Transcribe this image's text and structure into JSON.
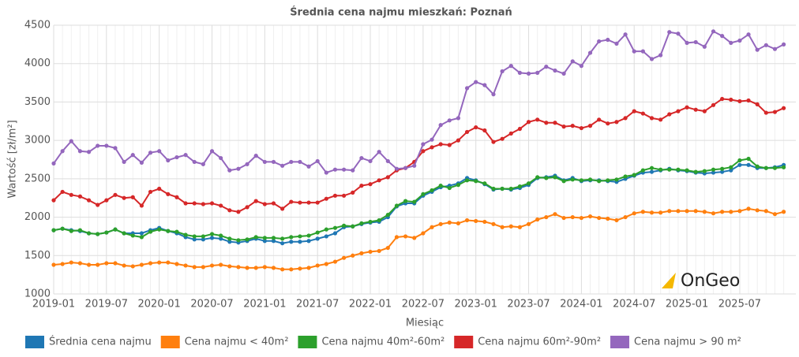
{
  "chart_data": {
    "type": "line",
    "title": "Średnia cena najmu mieszkań: Poznań",
    "x_label": "Miesiąc",
    "y_label": "Wartość [zł/m²]",
    "watermark": "OnGeo",
    "x": [
      "2019-01",
      "2019-02",
      "2019-03",
      "2019-04",
      "2019-05",
      "2019-06",
      "2019-07",
      "2019-08",
      "2019-09",
      "2019-10",
      "2019-11",
      "2019-12",
      "2020-01",
      "2020-02",
      "2020-03",
      "2020-04",
      "2020-05",
      "2020-06",
      "2020-07",
      "2020-08",
      "2020-09",
      "2020-10",
      "2020-11",
      "2020-12",
      "2021-01",
      "2021-02",
      "2021-03",
      "2021-04",
      "2021-05",
      "2021-06",
      "2021-07",
      "2021-08",
      "2021-09",
      "2021-10",
      "2021-11",
      "2021-12",
      "2022-01",
      "2022-02",
      "2022-03",
      "2022-04",
      "2022-05",
      "2022-06",
      "2022-07",
      "2022-08",
      "2022-09",
      "2022-10",
      "2022-11",
      "2022-12",
      "2023-01",
      "2023-02",
      "2023-03",
      "2023-04",
      "2023-05",
      "2023-06",
      "2023-07",
      "2023-08",
      "2023-09",
      "2023-10",
      "2023-11",
      "2023-12",
      "2024-01",
      "2024-02",
      "2024-03",
      "2024-04",
      "2024-05",
      "2024-06",
      "2024-07",
      "2024-08",
      "2024-09",
      "2024-10",
      "2024-11",
      "2024-12",
      "2025-01",
      "2025-02",
      "2025-03",
      "2025-04",
      "2025-05",
      "2025-06",
      "2025-07",
      "2025-08",
      "2025-09",
      "2025-10",
      "2025-11",
      "2025-12"
    ],
    "ylim": [
      1000,
      4500
    ],
    "yticks": [
      1000,
      1500,
      2000,
      2500,
      3000,
      3500,
      4000,
      4500
    ],
    "grid": true,
    "legend": "bottom",
    "series": [
      {
        "name": "Średnia cena najmu",
        "color": "#1f77b4",
        "values": [
          1830,
          1850,
          1830,
          1820,
          1790,
          1780,
          1800,
          1840,
          1790,
          1790,
          1790,
          1830,
          1860,
          1820,
          1790,
          1740,
          1710,
          1710,
          1730,
          1720,
          1680,
          1670,
          1690,
          1720,
          1690,
          1690,
          1660,
          1680,
          1680,
          1690,
          1720,
          1750,
          1790,
          1870,
          1880,
          1910,
          1930,
          1940,
          2000,
          2140,
          2180,
          2180,
          2280,
          2330,
          2390,
          2410,
          2440,
          2510,
          2480,
          2430,
          2360,
          2370,
          2360,
          2380,
          2420,
          2510,
          2520,
          2540,
          2480,
          2510,
          2470,
          2480,
          2480,
          2470,
          2460,
          2500,
          2540,
          2580,
          2590,
          2610,
          2630,
          2610,
          2600,
          2580,
          2570,
          2580,
          2590,
          2610,
          2680,
          2680,
          2640,
          2640,
          2650,
          2680
        ]
      },
      {
        "name": "Cena najmu < 40m²",
        "color": "#ff7f0e",
        "values": [
          1380,
          1390,
          1410,
          1400,
          1380,
          1380,
          1400,
          1400,
          1370,
          1360,
          1380,
          1400,
          1410,
          1410,
          1390,
          1370,
          1350,
          1350,
          1370,
          1380,
          1360,
          1350,
          1340,
          1340,
          1350,
          1340,
          1320,
          1320,
          1330,
          1340,
          1370,
          1390,
          1420,
          1470,
          1500,
          1530,
          1550,
          1560,
          1600,
          1740,
          1750,
          1730,
          1790,
          1870,
          1910,
          1930,
          1920,
          1960,
          1950,
          1940,
          1910,
          1870,
          1880,
          1870,
          1910,
          1970,
          2000,
          2040,
          1990,
          2000,
          1990,
          2010,
          1990,
          1980,
          1960,
          2000,
          2050,
          2070,
          2060,
          2060,
          2080,
          2080,
          2080,
          2080,
          2070,
          2050,
          2070,
          2070,
          2080,
          2110,
          2090,
          2080,
          2040,
          2070
        ]
      },
      {
        "name": "Cena najmu 40m²-60m²",
        "color": "#2ca02c",
        "values": [
          1830,
          1850,
          1820,
          1830,
          1790,
          1780,
          1800,
          1840,
          1790,
          1760,
          1740,
          1810,
          1840,
          1820,
          1810,
          1770,
          1750,
          1750,
          1780,
          1760,
          1720,
          1700,
          1710,
          1740,
          1730,
          1730,
          1720,
          1740,
          1750,
          1760,
          1800,
          1840,
          1860,
          1890,
          1880,
          1920,
          1940,
          1960,
          2030,
          2150,
          2210,
          2200,
          2300,
          2350,
          2410,
          2380,
          2420,
          2480,
          2470,
          2440,
          2370,
          2370,
          2370,
          2400,
          2440,
          2520,
          2510,
          2520,
          2470,
          2490,
          2480,
          2490,
          2470,
          2480,
          2490,
          2530,
          2550,
          2610,
          2640,
          2620,
          2620,
          2620,
          2610,
          2590,
          2600,
          2620,
          2630,
          2650,
          2740,
          2760,
          2660,
          2640,
          2640,
          2650
        ]
      },
      {
        "name": "Cena najmu 60m²-90m²",
        "color": "#d62728",
        "values": [
          2220,
          2330,
          2290,
          2270,
          2220,
          2160,
          2220,
          2290,
          2250,
          2260,
          2150,
          2330,
          2370,
          2300,
          2260,
          2180,
          2180,
          2170,
          2180,
          2150,
          2090,
          2070,
          2130,
          2210,
          2170,
          2180,
          2110,
          2200,
          2190,
          2190,
          2190,
          2240,
          2280,
          2280,
          2320,
          2410,
          2430,
          2480,
          2520,
          2610,
          2640,
          2720,
          2860,
          2910,
          2950,
          2940,
          3000,
          3110,
          3170,
          3130,
          2980,
          3020,
          3090,
          3150,
          3240,
          3270,
          3230,
          3230,
          3180,
          3190,
          3160,
          3190,
          3270,
          3220,
          3240,
          3290,
          3380,
          3350,
          3290,
          3270,
          3340,
          3380,
          3430,
          3400,
          3380,
          3460,
          3540,
          3530,
          3510,
          3520,
          3470,
          3360,
          3370,
          3420
        ]
      },
      {
        "name": "Cena najmu > 90 m²",
        "color": "#9467bd",
        "values": [
          2700,
          2860,
          2990,
          2860,
          2850,
          2930,
          2930,
          2900,
          2720,
          2810,
          2710,
          2840,
          2860,
          2740,
          2780,
          2810,
          2720,
          2690,
          2860,
          2770,
          2610,
          2630,
          2690,
          2800,
          2720,
          2720,
          2670,
          2720,
          2720,
          2660,
          2730,
          2580,
          2620,
          2620,
          2610,
          2770,
          2730,
          2850,
          2730,
          2630,
          2640,
          2670,
          2950,
          3010,
          3200,
          3260,
          3290,
          3680,
          3760,
          3720,
          3600,
          3900,
          3970,
          3880,
          3870,
          3880,
          3960,
          3910,
          3870,
          4030,
          3970,
          4140,
          4290,
          4310,
          4260,
          4380,
          4160,
          4160,
          4060,
          4110,
          4410,
          4390,
          4270,
          4280,
          4220,
          4420,
          4360,
          4270,
          4300,
          4380,
          4180,
          4240,
          4190,
          4250
        ]
      }
    ]
  }
}
